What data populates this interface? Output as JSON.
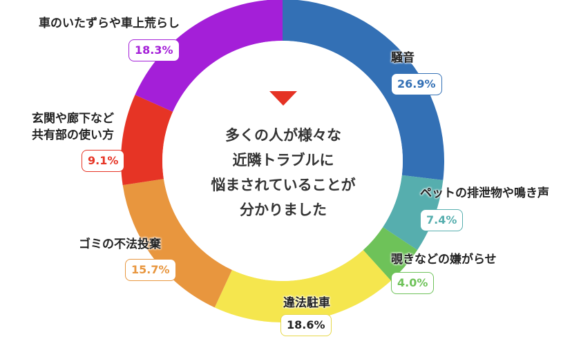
{
  "chart_data": {
    "type": "pie",
    "title": "",
    "center_text": [
      "多くの人が様々な",
      "近隣トラブルに",
      "悩まされていることが",
      "分かりました"
    ],
    "slices": [
      {
        "label": "騒音",
        "value": 26.9,
        "value_label": "26.9%",
        "color": "#3370b5"
      },
      {
        "label": "ペットの排泄物や鳴き声",
        "value": 7.4,
        "value_label": "7.4%",
        "color": "#56aeae"
      },
      {
        "label": "覗きなどの嫌がらせ",
        "value": 4.0,
        "value_label": "4.0%",
        "color": "#6ec259"
      },
      {
        "label": "違法駐車",
        "value": 18.6,
        "value_label": "18.6%",
        "color": "#f5e64e"
      },
      {
        "label": "ゴミの不法投棄",
        "value": 15.7,
        "value_label": "15.7%",
        "color": "#e8963e"
      },
      {
        "label": "玄関や廊下など\n共有部の使い方",
        "value": 9.1,
        "value_label": "9.1%",
        "color": "#e63425"
      },
      {
        "label": "車のいたずらや車上荒らし",
        "value": 18.3,
        "value_label": "18.3%",
        "color": "#a41fd8"
      }
    ]
  }
}
